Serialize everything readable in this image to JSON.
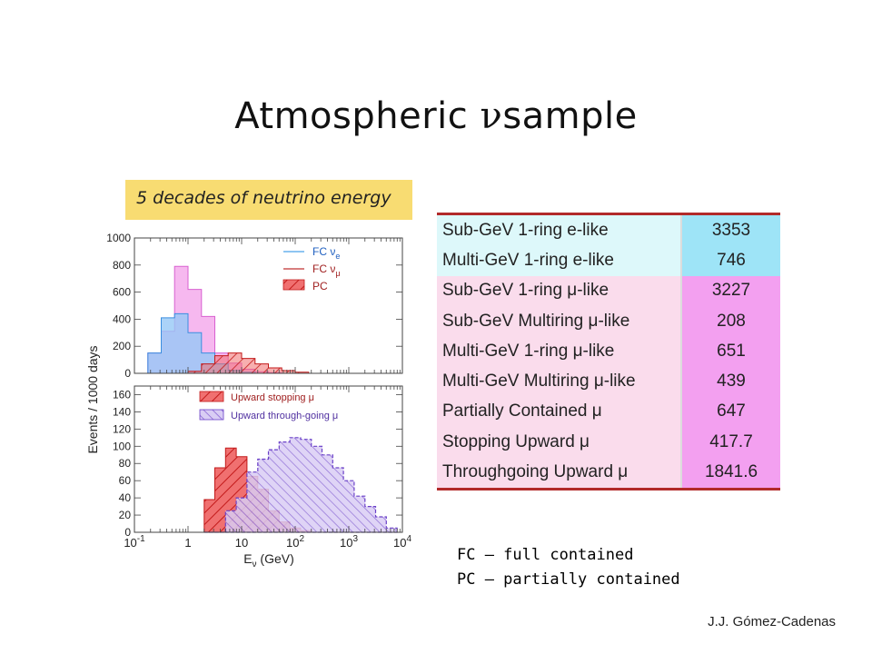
{
  "title": {
    "pre": "Atmospheric ",
    "nu": "ν",
    "post": "sample"
  },
  "banner": "5 decades of neutrino energy",
  "chart_data": [
    {
      "type": "area",
      "ylabel": "Events / 1000 days",
      "xscale": "log",
      "xlim": [
        0.1,
        10000
      ],
      "ylim": [
        0,
        1000
      ],
      "yticks": [
        "0",
        "200",
        "400",
        "600",
        "800",
        "1000"
      ],
      "bin_edges": [
        0.178,
        0.316,
        0.562,
        1.0,
        1.78,
        3.16,
        5.62,
        10,
        17.8,
        31.6,
        56.2,
        100,
        178,
        316
      ],
      "series": [
        {
          "name": "FC νμ",
          "values": [
            150,
            310,
            790,
            620,
            420,
            150,
            75,
            30,
            12,
            5,
            0,
            0,
            0
          ],
          "color": "#ee9be8"
        },
        {
          "name": "FC νe",
          "values": [
            150,
            410,
            440,
            300,
            150,
            70,
            20,
            8,
            0,
            0,
            0,
            0,
            0
          ],
          "color": "#86c4f2"
        },
        {
          "name": "PC",
          "values": [
            0,
            0,
            0,
            15,
            70,
            130,
            150,
            110,
            70,
            40,
            20,
            8,
            0
          ],
          "color": "#f06060"
        }
      ],
      "legend": {
        "position": "top-right",
        "items": [
          {
            "label": "FC ν",
            "sub": "e"
          },
          {
            "label": "FC ν",
            "sub": "μ"
          },
          {
            "label": "PC",
            "sub": ""
          }
        ]
      }
    },
    {
      "type": "area",
      "xlabel": "E",
      "xlabel_sub": "ν",
      "xlabel_unit": " (GeV)",
      "xscale": "log",
      "xlim": [
        0.1,
        10000
      ],
      "ylim": [
        0,
        170
      ],
      "yticks": [
        "0",
        "20",
        "40",
        "60",
        "80",
        "100",
        "120",
        "140",
        "160"
      ],
      "xticks": [
        {
          "base": "10",
          "exp": "-1",
          "value": 0.1
        },
        {
          "base": "1",
          "exp": "",
          "value": 1
        },
        {
          "base": "10",
          "exp": "",
          "value": 10
        },
        {
          "base": "10",
          "exp": "2",
          "value": 100
        },
        {
          "base": "10",
          "exp": "3",
          "value": 1000
        },
        {
          "base": "10",
          "exp": "4",
          "value": 10000
        }
      ],
      "series": [
        {
          "name": "Upward through-going μ",
          "bin_edges": [
            2.0,
            3.16,
            5.01,
            7.94,
            12.6,
            20,
            31.6,
            50.1,
            79.4,
            126,
            200,
            316,
            501,
            794,
            1260,
            2000,
            3160,
            5010,
            7940
          ],
          "values": [
            0,
            0,
            25,
            40,
            70,
            85,
            96,
            105,
            110,
            108,
            100,
            90,
            75,
            60,
            42,
            30,
            18,
            5
          ],
          "color": "#9a78de"
        },
        {
          "name": "Upward stopping μ",
          "bin_edges": [
            2.0,
            3.16,
            5.01,
            7.94,
            12.6,
            20,
            31.6,
            50.1,
            79.4,
            126,
            200
          ],
          "values": [
            38,
            75,
            98,
            88,
            65,
            50,
            25,
            12,
            5,
            2
          ],
          "color": "#f05858"
        }
      ],
      "legend": {
        "position": "top-right",
        "items": [
          {
            "label": "Upward stopping μ"
          },
          {
            "label": "Upward through-going μ"
          }
        ]
      }
    }
  ],
  "table": {
    "rows": [
      {
        "label": "Sub-GeV 1-ring e-like",
        "value": "3353",
        "group": "blue"
      },
      {
        "label": "Multi-GeV 1-ring e-like",
        "value": "746",
        "group": "blue"
      },
      {
        "label": "Sub-GeV 1-ring μ-like",
        "value": "3227",
        "group": "pink"
      },
      {
        "label": "Sub-GeV Multiring μ-like",
        "value": "208",
        "group": "pink"
      },
      {
        "label": "Multi-GeV 1-ring μ-like",
        "value": "651",
        "group": "pink"
      },
      {
        "label": "Multi-GeV Multiring μ-like",
        "value": "439",
        "group": "pink"
      },
      {
        "label": "Partially Contained μ",
        "value": "647",
        "group": "pink"
      },
      {
        "label": "Stopping Upward μ",
        "value": "417.7",
        "group": "pink"
      },
      {
        "label": "Throughgoing Upward μ",
        "value": "1841.6",
        "group": "pink"
      }
    ]
  },
  "notes": [
    "FC – full contained",
    "PC – partially contained"
  ],
  "author": "J.J. Gómez-Cadenas"
}
